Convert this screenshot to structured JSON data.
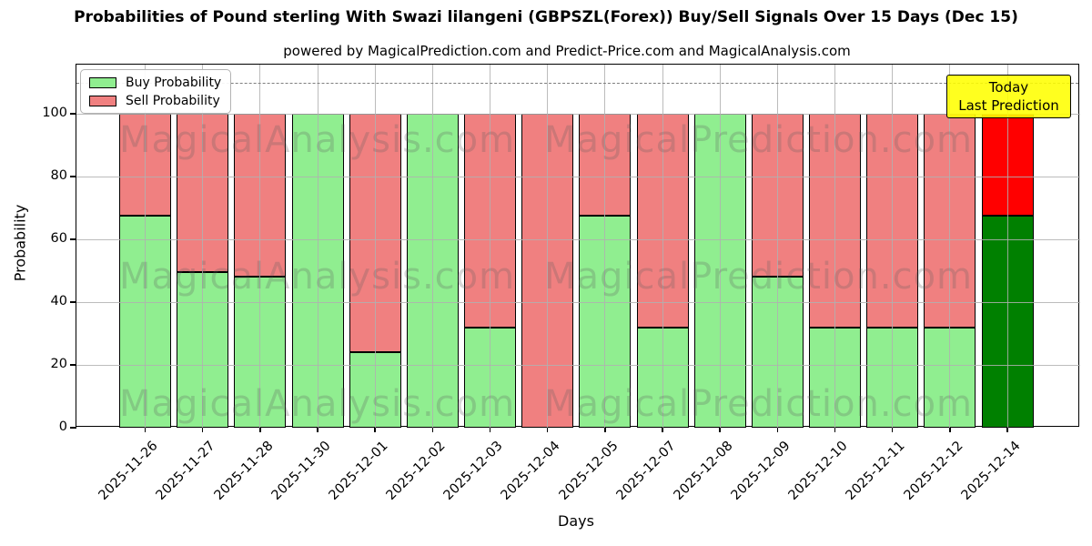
{
  "title": "Probabilities of Pound sterling With Swazi lilangeni (GBPSZL(Forex)) Buy/Sell Signals Over 15 Days (Dec 15)",
  "subtitle": "powered by MagicalPrediction.com and Predict-Price.com and MagicalAnalysis.com",
  "annotation": {
    "line1": "Today",
    "line2": "Last Prediction",
    "bg_color": "#ffff00"
  },
  "watermarks": {
    "left": "MagicalAnalysis.com",
    "right": "MagicalPrediction.com"
  },
  "legend": {
    "items": [
      {
        "label": "Buy Probability",
        "color": "#90ee90"
      },
      {
        "label": "Sell Probability",
        "color": "#f08080"
      }
    ]
  },
  "colors": {
    "buy_normal": "#90ee90",
    "sell_normal": "#f08080",
    "buy_today": "#008000",
    "sell_today": "#ff0000",
    "grid": "#b0b0b0",
    "dashed_line": "#7f7f7f",
    "bar_edge": "#000000"
  },
  "chart_data": {
    "type": "bar",
    "stacked": true,
    "title": "Probabilities of Pound sterling With Swazi lilangeni (GBPSZL(Forex)) Buy/Sell Signals Over 15 Days (Dec 15)",
    "xlabel": "Days",
    "ylabel": "Probability",
    "categories": [
      "2025-11-26",
      "2025-11-27",
      "2025-11-28",
      "2025-11-30",
      "2025-12-01",
      "2025-12-02",
      "2025-12-03",
      "2025-12-04",
      "2025-12-05",
      "2025-12-07",
      "2025-12-08",
      "2025-12-09",
      "2025-12-10",
      "2025-12-11",
      "2025-12-12",
      "2025-12-14"
    ],
    "series": [
      {
        "name": "Buy Probability",
        "values": [
          67.5,
          49.5,
          48,
          100,
          24,
          100,
          32,
          0,
          67.5,
          32,
          100,
          48,
          32,
          32,
          32,
          67.5
        ]
      },
      {
        "name": "Sell Probability",
        "values": [
          32.5,
          50.5,
          52,
          0,
          76,
          0,
          68,
          100,
          32.5,
          68,
          0,
          52,
          68,
          68,
          68,
          32.5
        ]
      }
    ],
    "today_index": 15,
    "yticks": [
      0,
      20,
      40,
      60,
      80,
      100
    ],
    "ylim": [
      0,
      115.7
    ],
    "dashed_line_y": 110,
    "grid": true,
    "legend_position": "upper left"
  }
}
